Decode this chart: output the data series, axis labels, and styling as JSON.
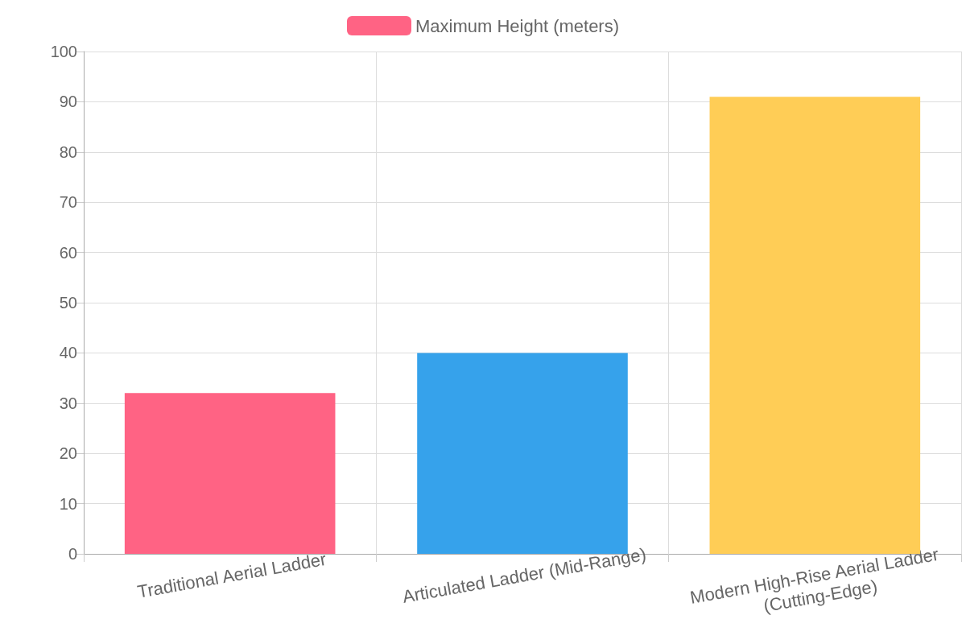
{
  "chart_data": {
    "type": "bar",
    "categories": [
      "Traditional Aerial Ladder",
      "Articulated Ladder (Mid-Range)",
      "Modern High-Rise Aerial Ladder (Cutting-Edge)"
    ],
    "series": [
      {
        "name": "Maximum Height (meters)",
        "color": "#ff6384",
        "values": [
          32,
          null,
          null
        ]
      },
      {
        "color": "#36a2eb",
        "values": [
          null,
          40,
          null
        ]
      },
      {
        "color": "#ffcd56",
        "values": [
          null,
          null,
          91
        ]
      }
    ],
    "ylim": [
      0,
      100
    ],
    "yticks": [
      0,
      10,
      20,
      30,
      40,
      50,
      60,
      70,
      80,
      90,
      100
    ],
    "grid": true,
    "legend": "top"
  }
}
